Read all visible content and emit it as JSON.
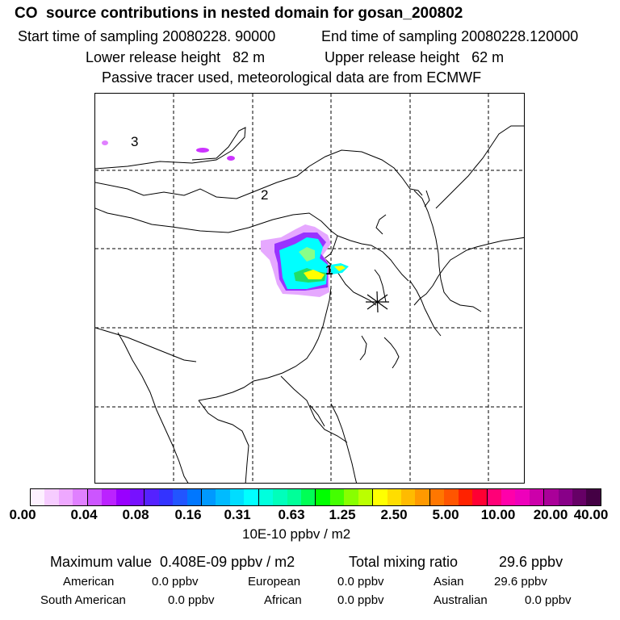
{
  "header": {
    "title": "CO  source contributions in nested domain for gosan_200802",
    "start_label": "Start time of sampling 20080228. 90000",
    "end_label": "End time of sampling 20080228.120000",
    "lower_label": "Lower release height   82 m",
    "upper_label": "Upper release height   62 m",
    "tracer_label": "Passive tracer used, meteorological data are from ECMWF"
  },
  "map": {
    "region_labels": [
      "1",
      "2",
      "3"
    ],
    "colors": {
      "cyan": "#00ffff",
      "green": "#22dd66",
      "yellow": "#ffff00",
      "magenta": "#cc33ff",
      "blue": "#3366ff"
    }
  },
  "colorbar": {
    "ticks": [
      "0.00",
      "0.04",
      "0.08",
      "0.16",
      "0.31",
      "0.63",
      "1.25",
      "2.50",
      "5.00",
      "10.00",
      "20.00",
      "40.00"
    ],
    "units": "10E-10 ppbv / m2",
    "colors": [
      "#fdf0ff",
      "#f6ccff",
      "#eea8ff",
      "#e080ff",
      "#cc55ff",
      "#bb22ff",
      "#9900ff",
      "#7711ff",
      "#5522ff",
      "#3333ff",
      "#2255ff",
      "#0077ff",
      "#0099ff",
      "#00bbff",
      "#00ddff",
      "#00ffff",
      "#00ffdd",
      "#00ffbb",
      "#00ff99",
      "#00ff55",
      "#00ff00",
      "#44ff00",
      "#88ff00",
      "#bbff00",
      "#ffff00",
      "#ffdd00",
      "#ffbb00",
      "#ff9900",
      "#ff7700",
      "#ff5500",
      "#ff2200",
      "#ff0033",
      "#ff0077",
      "#ff00aa",
      "#ee00bb",
      "#cc00aa",
      "#aa0099",
      "#880088",
      "#660066",
      "#440044"
    ]
  },
  "summary": {
    "max_label": "Maximum value  0.408E-09 ppbv / m2",
    "total_label": "Total mixing ratio",
    "total_value": "29.6 ppbv"
  },
  "regions": [
    {
      "name": "American",
      "value": "0.0 ppbv"
    },
    {
      "name": "European",
      "value": "0.0 ppbv"
    },
    {
      "name": "Asian",
      "value": "29.6 ppbv"
    },
    {
      "name": "South American",
      "value": "0.0 ppbv"
    },
    {
      "name": "African",
      "value": "0.0 ppbv"
    },
    {
      "name": "Australian",
      "value": "0.0 ppbv"
    }
  ]
}
